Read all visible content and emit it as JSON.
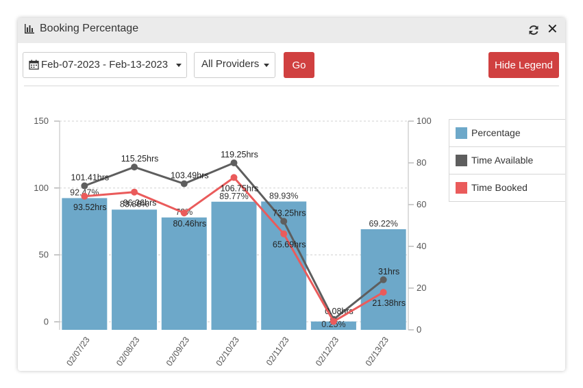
{
  "window": {
    "title": "Booking Percentage",
    "title_icon": "bar-chart-icon",
    "refresh_icon": "refresh-icon",
    "close_icon": "close-icon",
    "close_glyph": "✕"
  },
  "toolbar": {
    "date_range": "Feb-07-2023 - Feb-13-2023",
    "date_icon": "calendar-icon",
    "provider_select": "All Providers",
    "go_label": "Go",
    "hide_legend_label": "Hide Legend"
  },
  "colors": {
    "percentage": "#6da8c9",
    "time_available": "#5e5e5e",
    "time_booked": "#ea5b5b",
    "button": "#d04040"
  },
  "chart_data": {
    "type": "bar",
    "categories": [
      "02/07/23",
      "02/08/23",
      "02/09/23",
      "02/10/23",
      "02/11/23",
      "02/12/23",
      "02/13/23"
    ],
    "series": [
      {
        "name": "Percentage",
        "type": "bar",
        "axis": "left",
        "values": [
          92.47,
          83.86,
          78,
          89.77,
          89.93,
          0.25,
          69.22
        ],
        "labels": [
          "92.47%",
          "83.86%",
          "78%",
          "89.77%",
          "89.93%",
          "0.25%",
          "69.22%"
        ]
      },
      {
        "name": "Time Available",
        "type": "line",
        "axis": "right",
        "values": [
          69,
          78,
          70,
          80,
          52,
          5,
          24
        ],
        "labels": [
          "101.41hrs",
          "115.25hrs",
          "103.49hrs",
          "119.25hrs",
          "73.25hrs",
          "0.08hrs",
          "31hrs"
        ]
      },
      {
        "name": "Time Booked",
        "type": "line",
        "axis": "right",
        "values": [
          64,
          66,
          56,
          73,
          46,
          4,
          18
        ],
        "labels": [
          "93.52hrs",
          "96.36hrs",
          "80.46hrs",
          "106.75hrs",
          "65.69hrs",
          "",
          "21.38hrs"
        ]
      }
    ],
    "y_left": {
      "ticks": [
        0,
        50,
        100,
        150
      ],
      "range": [
        -6,
        150
      ]
    },
    "y_right": {
      "ticks": [
        0,
        20,
        40,
        60,
        80,
        100
      ],
      "range": [
        0,
        100
      ]
    },
    "grid": "horizontal dashed",
    "legend_position": "right"
  }
}
